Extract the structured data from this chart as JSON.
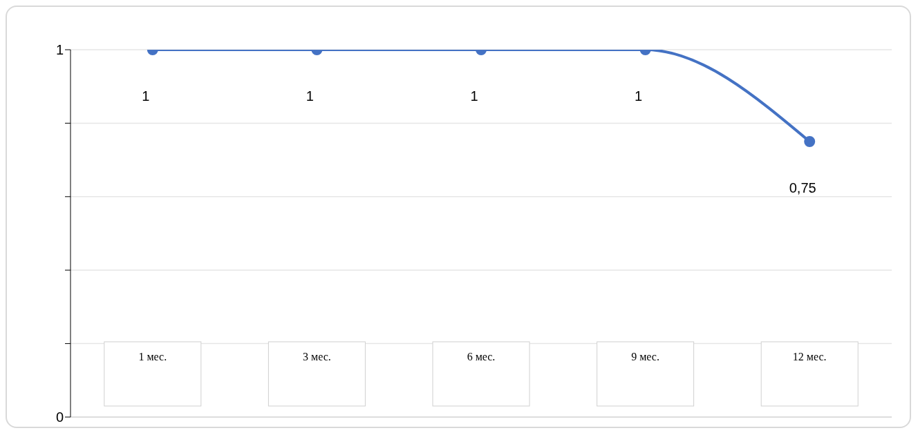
{
  "chart_data": {
    "type": "line",
    "categories": [
      "1 мес.",
      "3 мес.",
      "6 мес.",
      "9 мес.",
      "12 мес."
    ],
    "series": [
      {
        "color": "#4472c4",
        "values": [
          1,
          1,
          1,
          1,
          0.75
        ],
        "value_labels": [
          "1",
          "1",
          "1",
          "1",
          "0,75"
        ]
      }
    ],
    "ylim": [
      0,
      1
    ],
    "yticks": [
      {
        "value": 0,
        "label": "0"
      },
      {
        "value": 0.2,
        "label": null
      },
      {
        "value": 0.4,
        "label": null
      },
      {
        "value": 0.6,
        "label": null
      },
      {
        "value": 0.8,
        "label": null
      },
      {
        "value": 1,
        "label": "1"
      }
    ],
    "grid": "y",
    "marker": "circle",
    "legend": false
  }
}
